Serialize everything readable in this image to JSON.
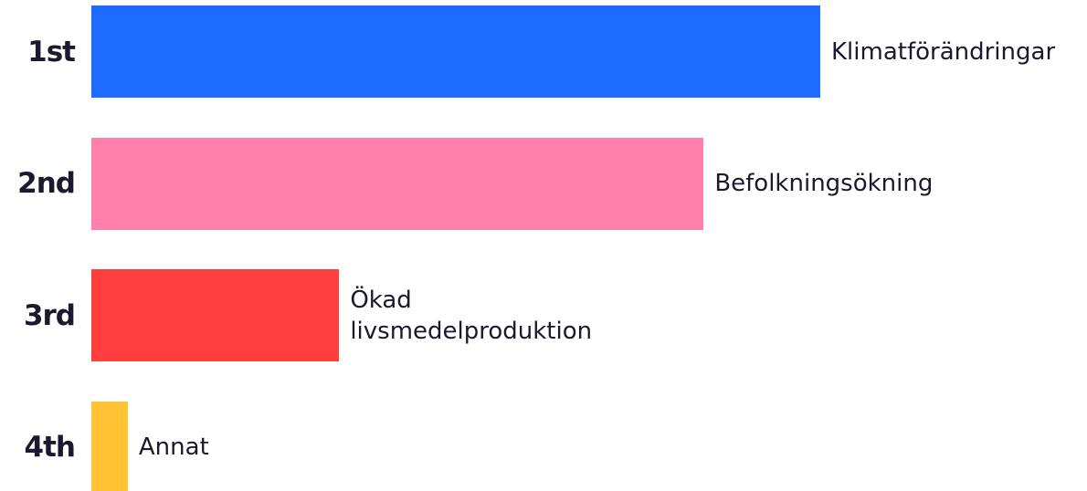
{
  "chart_data": {
    "type": "bar",
    "orientation": "horizontal",
    "categories": [
      "1st",
      "2nd",
      "3rd",
      "4th"
    ],
    "labels": [
      "Klimatförändringar",
      "Befolkningsökning",
      "Ökad livsmedelproduktion",
      "Annat"
    ],
    "values": [
      100,
      84,
      34,
      5
    ],
    "colors": [
      "#1e6bff",
      "#ff80aa",
      "#ff3e3e",
      "#ffc235"
    ],
    "xlim": [
      0,
      100
    ]
  }
}
